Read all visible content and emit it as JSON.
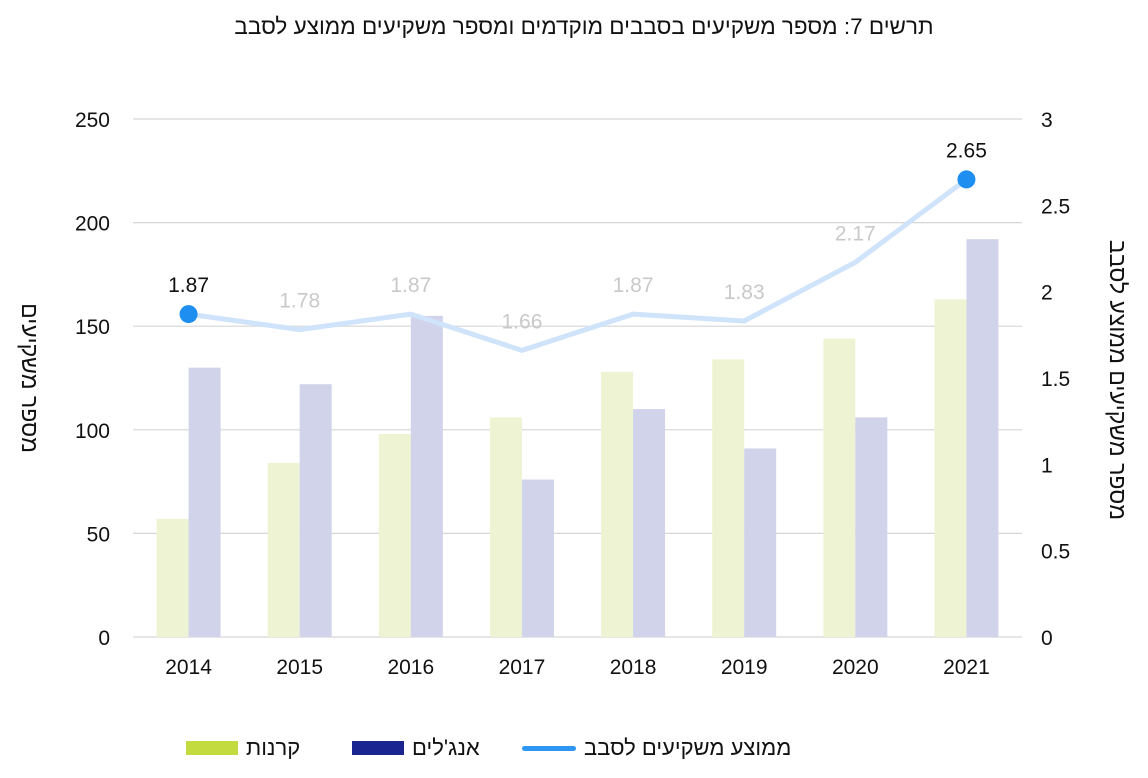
{
  "title": "תרשים 7: מספר משקיעים בסבבים מוקדמים ומספר משקיעים ממוצע לסבב",
  "chart_data": {
    "type": "bar",
    "title": "תרשים 7: מספר משקיעים בסבבים מוקדמים ומספר משקיעים ממוצע לסבב",
    "categories": [
      "2014",
      "2015",
      "2016",
      "2017",
      "2018",
      "2019",
      "2020",
      "2021"
    ],
    "series": [
      {
        "name": "קרנות",
        "type": "bar",
        "axis": "left",
        "color": "#eef4d3",
        "legend_color": "#c3db3e",
        "values": [
          57,
          84,
          98,
          106,
          128,
          134,
          144,
          163
        ]
      },
      {
        "name": "אנג'לים",
        "type": "bar",
        "axis": "left",
        "color": "#d0d3ea",
        "legend_color": "#1a2592",
        "values": [
          130,
          122,
          155,
          76,
          110,
          91,
          106,
          192
        ]
      },
      {
        "name": "ממוצע משקיעים לסבב",
        "type": "line",
        "axis": "right",
        "color": "#cfe3fb",
        "legend_color": "#2f96f5",
        "marker_color": "#1e8ef0",
        "values": [
          1.87,
          1.78,
          1.87,
          1.66,
          1.87,
          1.83,
          2.17,
          2.65
        ],
        "labels": [
          "1.87",
          "1.78",
          "1.87",
          "1.66",
          "1.87",
          "1.83",
          "2.17",
          "2.65"
        ],
        "highlighted_points": [
          "2014",
          "2021"
        ]
      }
    ],
    "y_left": {
      "label": "מספר משקיעים",
      "ylim": [
        0,
        250
      ],
      "ticks": [
        "0",
        "50",
        "100",
        "150",
        "200",
        "250"
      ]
    },
    "y_right": {
      "label": "מספר משקיעים ממוצע לסבב",
      "ylim": [
        0,
        3
      ],
      "ticks": [
        "0",
        "0.5",
        "1",
        "1.5",
        "2",
        "2.5",
        "3"
      ]
    },
    "grid": true,
    "legend_position": "bottom"
  },
  "legend": [
    {
      "label": "קרנות",
      "kind": "bar",
      "color": "#c3db3e"
    },
    {
      "label": "אנג'לים",
      "kind": "bar",
      "color": "#1a2592"
    },
    {
      "label": "ממוצע משקיעים לסבב",
      "kind": "line",
      "color": "#2f96f5"
    }
  ]
}
